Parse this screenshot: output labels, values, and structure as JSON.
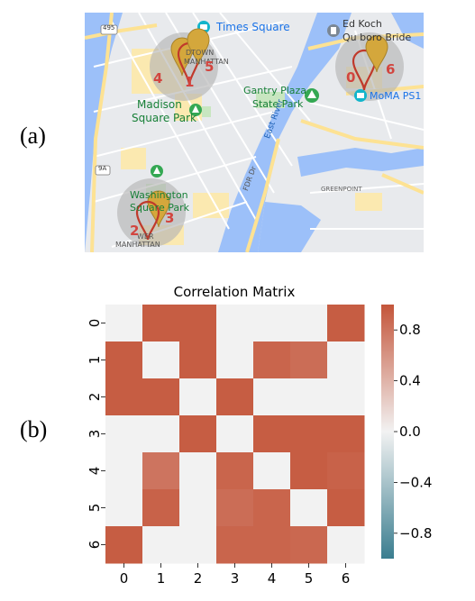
{
  "figure": {
    "panel_a_label": "(a)",
    "panel_b_label": "(b)"
  },
  "map": {
    "place_labels": {
      "times_square": "Times Square",
      "ed_koch": "Ed Koch",
      "ed_koch_line2": "Qu   boro Bride",
      "midtown": "DTOWN",
      "manhattan": "MANHATTAN",
      "gantry": "Gantry Plaza",
      "gantry2": "State Park",
      "moma": "MoMA PS1",
      "madison": "Madison",
      "madison2": "Square Park",
      "east_river": "East River",
      "fdr": "FDR Dr",
      "greenpoint": "GREENPOINT",
      "washington": "Washington",
      "washington2": "Square Park",
      "lower": "WER",
      "lower2": "MANHATTAN",
      "route_495": "495",
      "route_9a": "9A"
    },
    "cluster_labels": [
      "0",
      "1",
      "2",
      "3",
      "4",
      "5",
      "6"
    ],
    "colors": {
      "water": "#9cc0f9",
      "land": "#e8eaed",
      "road": "#ffffff",
      "highway": "#fde293",
      "park": "#c8e6c0",
      "cluster_circle": "#b5b5b5",
      "pin_gold": "#d4a73c",
      "pin_red": "#c0392b",
      "label_red": "#d2453f"
    }
  },
  "chart_data": {
    "type": "heatmap",
    "title": "Correlation Matrix",
    "x_tick_labels": [
      "0",
      "1",
      "2",
      "3",
      "4",
      "5",
      "6"
    ],
    "y_tick_labels": [
      "0",
      "1",
      "2",
      "3",
      "4",
      "5",
      "6"
    ],
    "values": [
      [
        0.0,
        0.95,
        0.95,
        0.0,
        0.0,
        0.0,
        0.95
      ],
      [
        0.95,
        0.0,
        0.95,
        0.0,
        0.9,
        0.85,
        0.0
      ],
      [
        0.95,
        0.95,
        0.0,
        0.95,
        0.0,
        0.0,
        0.0
      ],
      [
        0.0,
        0.0,
        0.95,
        0.0,
        0.95,
        0.95,
        0.95
      ],
      [
        0.0,
        0.8,
        0.0,
        0.9,
        0.0,
        0.95,
        0.92
      ],
      [
        0.0,
        0.92,
        0.0,
        0.85,
        0.9,
        0.0,
        0.95
      ],
      [
        0.95,
        0.0,
        0.0,
        0.9,
        0.9,
        0.88,
        0.0
      ]
    ],
    "colorbar": {
      "range": [
        -1.0,
        1.0
      ],
      "tick_values": [
        0.8,
        0.4,
        0.0,
        -0.4,
        -0.8
      ],
      "tick_labels": [
        "0.8",
        "0.4",
        "0.0",
        "−0.4",
        "−0.8"
      ],
      "colors": {
        "neg": "#3a7d8f",
        "mid": "#f2f2f2",
        "pos": "#c4553a"
      }
    },
    "grid": false
  }
}
